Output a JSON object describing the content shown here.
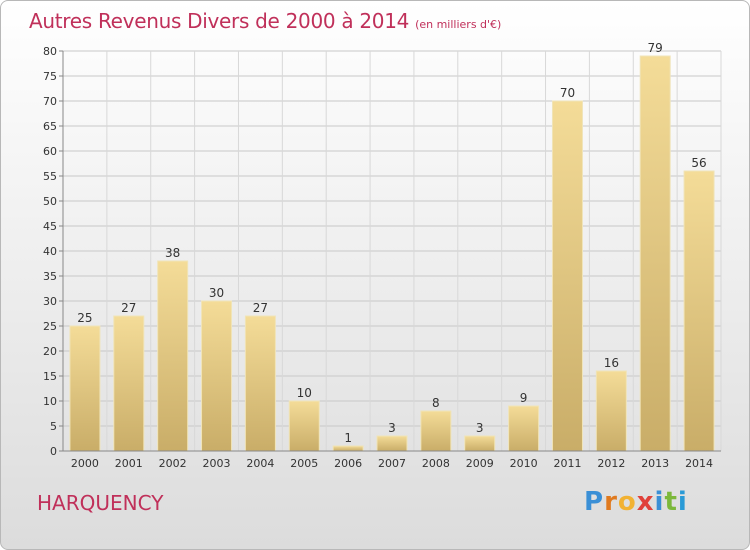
{
  "header": {
    "title": "Autres Revenus Divers de 2000 à 2014",
    "unit": "(en milliers d'€)"
  },
  "footer": {
    "commune": "HARQUENCY",
    "logo_letters": [
      {
        "ch": "P",
        "color": "#3a8fd6"
      },
      {
        "ch": "r",
        "color": "#e07a1f"
      },
      {
        "ch": "o",
        "color": "#f2b233"
      },
      {
        "ch": "x",
        "color": "#e0413a"
      },
      {
        "ch": "i",
        "color": "#3a8fd6"
      },
      {
        "ch": "t",
        "color": "#7cb83b"
      },
      {
        "ch": "i",
        "color": "#2a9ad6"
      }
    ]
  },
  "chart_data": {
    "type": "bar",
    "title": "Autres Revenus Divers de 2000 à 2014",
    "subtitle": "(en milliers d'€)",
    "xlabel": "",
    "ylabel": "",
    "categories": [
      "2000",
      "2001",
      "2002",
      "2003",
      "2004",
      "2005",
      "2006",
      "2007",
      "2008",
      "2009",
      "2010",
      "2011",
      "2012",
      "2013",
      "2014"
    ],
    "values": [
      25,
      27,
      38,
      30,
      27,
      10,
      1,
      3,
      8,
      3,
      9,
      70,
      16,
      79,
      56
    ],
    "ylim": [
      0,
      80
    ],
    "yticks": [
      0,
      5,
      10,
      15,
      20,
      25,
      30,
      35,
      40,
      45,
      50,
      55,
      60,
      65,
      70,
      75,
      80
    ],
    "grid": true,
    "bar_color": "#e8cd84"
  }
}
